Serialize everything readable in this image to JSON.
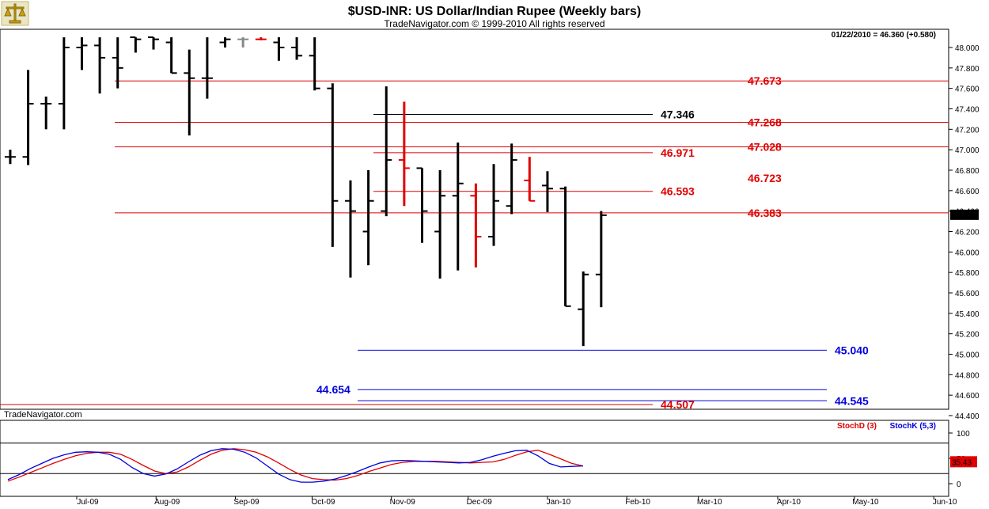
{
  "title": "$USD-INR:  US Dollar/Indian Rupee  (Weekly bars)",
  "subtitle": "TradeNavigator.com © 1999-2010 All rights reserved",
  "brand": "TradeNavigator.com",
  "logo_icon": "balance-scale-icon",
  "colors": {
    "bar": "#000000",
    "bar_red": "#e00000",
    "bar_gray": "#888888",
    "red": "#e00000",
    "blue": "#0000dd",
    "black": "#000000"
  },
  "chart_data": [
    {
      "type": "ohlc",
      "title": "$USD-INR:  US Dollar/Indian Rupee  (Weekly bars)",
      "last_quote": "01/22/2010 = 46.360 (+0.580)",
      "last_value_label": "46.360",
      "ylim": [
        44.4,
        48.1
      ],
      "y_ticks": [
        "48.000",
        "47.800",
        "47.600",
        "47.400",
        "47.200",
        "47.000",
        "46.800",
        "46.600",
        "46.400",
        "46.200",
        "46.000",
        "45.800",
        "45.600",
        "45.400",
        "45.200",
        "45.000",
        "44.800",
        "44.600",
        "44.400"
      ],
      "x_ticks": [
        "Jul-09",
        "Aug-09",
        "Sep-09",
        "Oct-09",
        "Nov-09",
        "Dec-09",
        "Jan-10",
        "Feb-10",
        "Mar-10",
        "Apr-10",
        "May-10",
        "Jun-10"
      ],
      "bars": [
        {
          "date": "2009-05-29",
          "o": 47.1,
          "h": 47.35,
          "l": 46.58,
          "c": 46.93
        },
        {
          "date": "2009-06-05",
          "o": 46.93,
          "h": 47.0,
          "l": 46.86,
          "c": 46.93
        },
        {
          "date": "2009-06-12",
          "o": 46.93,
          "h": 47.78,
          "l": 46.85,
          "c": 47.45
        },
        {
          "date": "2009-06-19",
          "o": 47.45,
          "h": 47.52,
          "l": 47.2,
          "c": 47.45
        },
        {
          "date": "2009-06-26",
          "o": 47.45,
          "h": 48.1,
          "l": 47.2,
          "c": 48.0
        },
        {
          "date": "2009-07-03",
          "o": 48.0,
          "h": 48.1,
          "l": 47.78,
          "c": 48.02
        },
        {
          "date": "2009-07-10",
          "o": 48.02,
          "h": 48.1,
          "l": 47.55,
          "c": 47.9
        },
        {
          "date": "2009-07-17",
          "o": 47.9,
          "h": 48.1,
          "l": 47.6,
          "c": 47.8
        },
        {
          "date": "2009-07-24",
          "o": 48.1,
          "h": 48.1,
          "l": 47.95,
          "c": 48.08
        },
        {
          "date": "2009-07-31",
          "o": 48.1,
          "h": 48.1,
          "l": 47.98,
          "c": 48.08
        },
        {
          "date": "2009-08-07",
          "o": 48.05,
          "h": 48.1,
          "l": 47.75,
          "c": 47.75
        },
        {
          "date": "2009-08-14",
          "o": 47.75,
          "h": 47.98,
          "l": 47.14,
          "c": 47.7
        },
        {
          "date": "2009-08-21",
          "o": 47.7,
          "h": 48.1,
          "l": 47.5,
          "c": 47.7
        },
        {
          "date": "2009-08-28",
          "o": 48.05,
          "h": 48.1,
          "l": 48.0,
          "c": 48.08
        },
        {
          "date": "2009-09-04",
          "o": 48.08,
          "h": 48.1,
          "l": 48.0,
          "c": 48.08,
          "color": "gray"
        },
        {
          "date": "2009-09-11",
          "o": 48.08,
          "h": 48.1,
          "l": 48.07,
          "c": 48.08,
          "color": "red"
        },
        {
          "date": "2009-09-18",
          "o": 48.05,
          "h": 48.1,
          "l": 47.87,
          "c": 48.0
        },
        {
          "date": "2009-09-25",
          "o": 48.0,
          "h": 48.1,
          "l": 47.88,
          "c": 47.92
        },
        {
          "date": "2009-10-02",
          "o": 47.92,
          "h": 48.1,
          "l": 47.58,
          "c": 47.6
        },
        {
          "date": "2009-10-09",
          "o": 47.6,
          "h": 47.65,
          "l": 46.05,
          "c": 46.5
        },
        {
          "date": "2009-10-16",
          "o": 46.5,
          "h": 46.7,
          "l": 45.75,
          "c": 46.4
        },
        {
          "date": "2009-10-23",
          "o": 46.2,
          "h": 46.8,
          "l": 45.87,
          "c": 46.5
        },
        {
          "date": "2009-10-30",
          "o": 46.4,
          "h": 47.62,
          "l": 46.35,
          "c": 46.9
        },
        {
          "date": "2009-11-06",
          "o": 46.9,
          "h": 47.47,
          "l": 46.45,
          "c": 46.82,
          "color": "red"
        },
        {
          "date": "2009-11-13",
          "o": 46.82,
          "h": 46.82,
          "l": 46.09,
          "c": 46.4
        },
        {
          "date": "2009-11-20",
          "o": 46.2,
          "h": 46.8,
          "l": 45.74,
          "c": 46.55
        },
        {
          "date": "2009-11-27",
          "o": 46.55,
          "h": 47.07,
          "l": 45.82,
          "c": 46.67
        },
        {
          "date": "2009-12-04",
          "o": 46.55,
          "h": 46.67,
          "l": 45.85,
          "c": 46.15,
          "color": "red"
        },
        {
          "date": "2009-12-11",
          "o": 46.15,
          "h": 46.86,
          "l": 46.06,
          "c": 46.5
        },
        {
          "date": "2009-12-18",
          "o": 46.45,
          "h": 47.06,
          "l": 46.37,
          "c": 46.9
        },
        {
          "date": "2009-12-25",
          "o": 46.7,
          "h": 46.93,
          "l": 46.5,
          "c": 46.5,
          "color": "red"
        },
        {
          "date": "2010-01-01",
          "o": 46.65,
          "h": 46.79,
          "l": 46.39,
          "c": 46.62
        },
        {
          "date": "2010-01-08",
          "o": 46.62,
          "h": 46.64,
          "l": 45.47,
          "c": 45.47
        },
        {
          "date": "2010-01-15",
          "o": 45.44,
          "h": 45.81,
          "l": 45.08,
          "c": 45.78
        },
        {
          "date": "2010-01-22",
          "o": 45.78,
          "h": 46.4,
          "l": 45.46,
          "c": 46.36
        }
      ],
      "levels": [
        {
          "value": "47.673",
          "color": "red"
        },
        {
          "value": "47.346",
          "color": "black"
        },
        {
          "value": "47.268",
          "color": "red"
        },
        {
          "value": "47.028",
          "color": "red"
        },
        {
          "value": "46.971",
          "color": "red"
        },
        {
          "value": "46.723",
          "color": "red"
        },
        {
          "value": "46.593",
          "color": "red"
        },
        {
          "value": "46.383",
          "color": "red"
        },
        {
          "value": "45.040",
          "color": "blue"
        },
        {
          "value": "44.654",
          "color": "blue"
        },
        {
          "value": "44.545",
          "color": "blue"
        },
        {
          "value": "44.507",
          "color": "red"
        }
      ]
    },
    {
      "type": "line",
      "ylim": [
        0,
        100
      ],
      "y_ticks": [
        "100",
        "50",
        "0"
      ],
      "reference_lines": [
        80,
        20
      ],
      "series": [
        {
          "name": "StochD (3)",
          "color": "red",
          "values": [
            5,
            13,
            22,
            31,
            40,
            48,
            55,
            60,
            62,
            62,
            58,
            48,
            36,
            25,
            20,
            23,
            33,
            46,
            58,
            66,
            69,
            67,
            62,
            53,
            41,
            28,
            17,
            10,
            8,
            7,
            10,
            16,
            24,
            31,
            38,
            42,
            44,
            44,
            44,
            43,
            42,
            41,
            42,
            43,
            48,
            56,
            63,
            66,
            58,
            49,
            40,
            35
          ]
        },
        {
          "name": "StochK (5,3)",
          "color": "blue",
          "values": [
            8,
            18,
            30,
            40,
            50,
            57,
            62,
            63,
            62,
            58,
            48,
            32,
            20,
            15,
            19,
            29,
            43,
            56,
            65,
            69,
            68,
            62,
            51,
            35,
            19,
            8,
            3,
            3,
            5,
            9,
            16,
            24,
            33,
            41,
            45,
            46,
            45,
            44,
            43,
            42,
            41,
            42,
            47,
            54,
            60,
            65,
            66,
            55,
            40,
            33,
            34,
            35
          ]
        }
      ],
      "last_value_label": "35.43"
    }
  ]
}
